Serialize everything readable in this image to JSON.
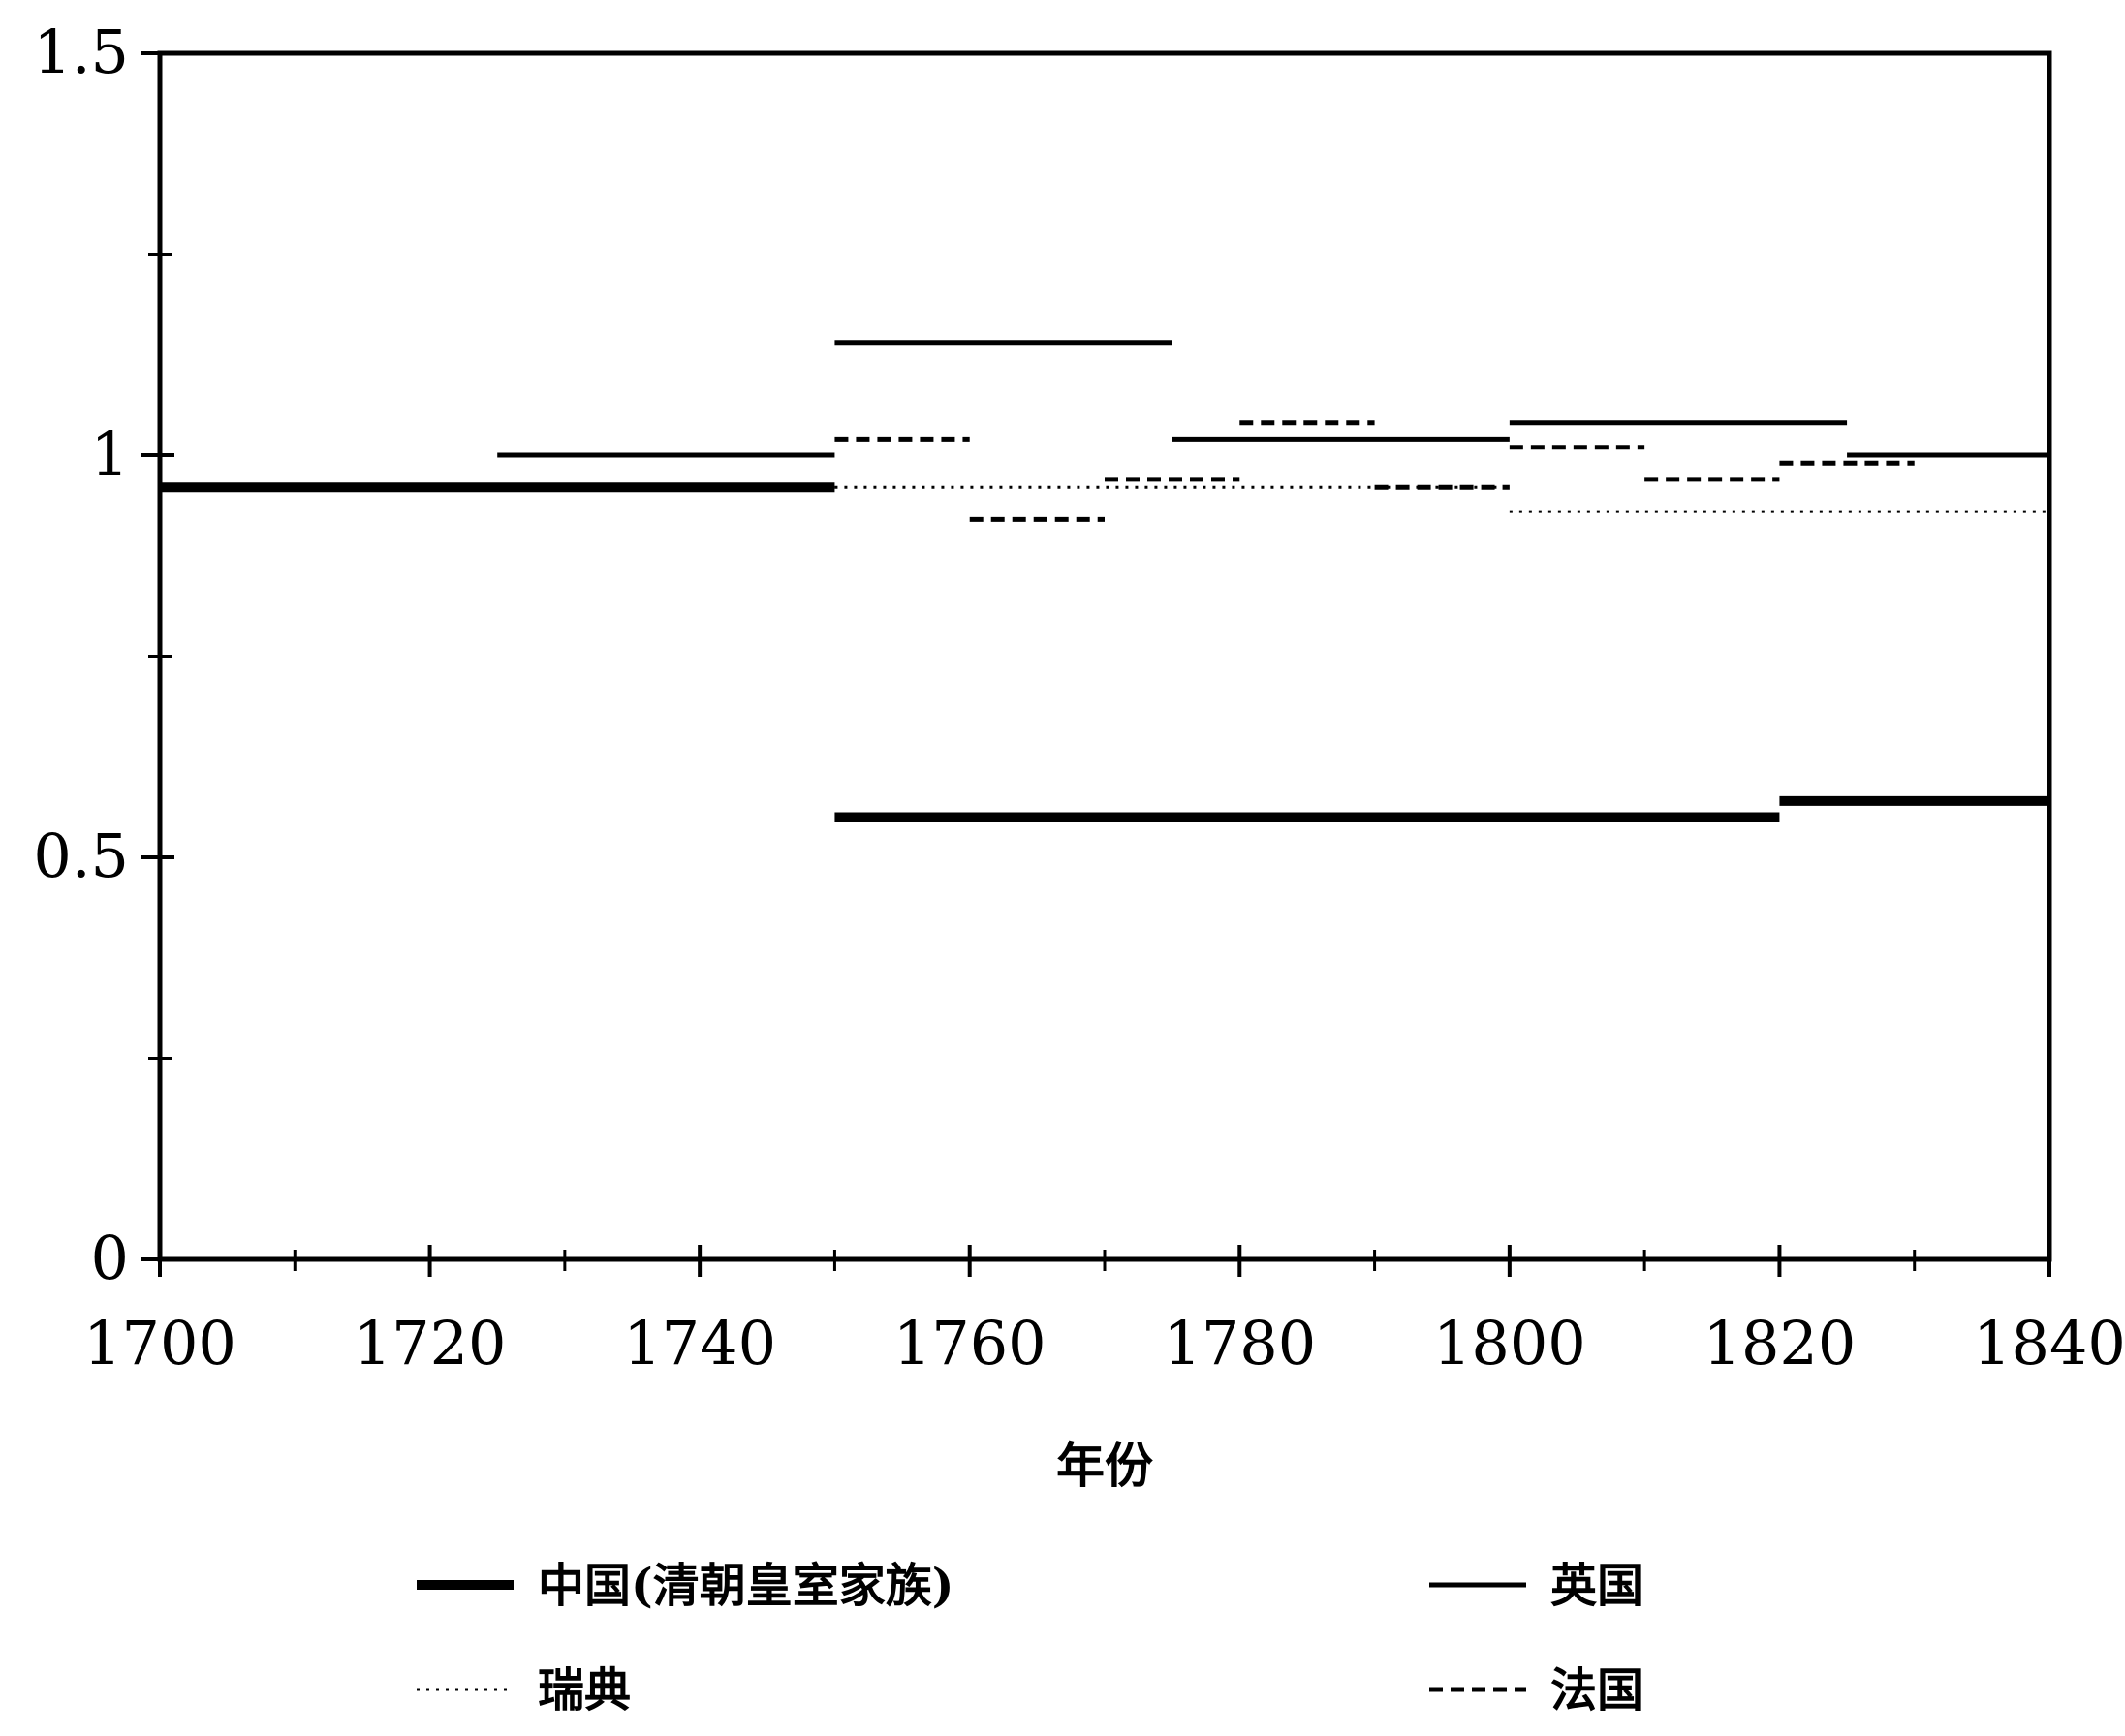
{
  "chart_data": {
    "type": "line",
    "step": true,
    "title": "",
    "xlabel": "年份",
    "ylabel": "",
    "xlim": [
      1700,
      1840
    ],
    "ylim": [
      0,
      1.5
    ],
    "x_ticks": [
      1700,
      1720,
      1740,
      1760,
      1780,
      1800,
      1820,
      1840
    ],
    "x_tick_labels": [
      "1700",
      "1720",
      "1740",
      "1760",
      "1780",
      "1800",
      "1820",
      "1840"
    ],
    "y_ticks": [
      0,
      0.5,
      1,
      1.5
    ],
    "y_tick_labels": [
      "0",
      "0.5",
      "1",
      "1.5"
    ],
    "grid": false,
    "legend_position": "bottom",
    "series": [
      {
        "name": "中国(清朝皇室家族)",
        "style": "thick-solid",
        "color": "#000000",
        "segments": [
          {
            "x": [
              1700,
              1750
            ],
            "y": 0.96
          },
          {
            "x": [
              1750,
              1820
            ],
            "y": 0.55
          },
          {
            "x": [
              1820,
              1840
            ],
            "y": 0.57
          }
        ]
      },
      {
        "name": "英国",
        "style": "solid",
        "color": "#000000",
        "segments": [
          {
            "x": [
              1725,
              1750
            ],
            "y": 1.0
          },
          {
            "x": [
              1750,
              1775
            ],
            "y": 1.14
          },
          {
            "x": [
              1775,
              1800
            ],
            "y": 1.02
          },
          {
            "x": [
              1800,
              1825
            ],
            "y": 1.04
          },
          {
            "x": [
              1825,
              1840
            ],
            "y": 1.0
          }
        ]
      },
      {
        "name": "瑞典",
        "style": "dotted",
        "color": "#000000",
        "segments": [
          {
            "x": [
              1750,
              1800
            ],
            "y": 0.96
          },
          {
            "x": [
              1800,
              1840
            ],
            "y": 0.93
          }
        ]
      },
      {
        "name": "法国",
        "style": "dashed",
        "color": "#000000",
        "segments": [
          {
            "x": [
              1750,
              1760
            ],
            "y": 1.02
          },
          {
            "x": [
              1760,
              1770
            ],
            "y": 0.92
          },
          {
            "x": [
              1770,
              1780
            ],
            "y": 0.97
          },
          {
            "x": [
              1780,
              1790
            ],
            "y": 1.04
          },
          {
            "x": [
              1790,
              1800
            ],
            "y": 0.96
          },
          {
            "x": [
              1800,
              1810
            ],
            "y": 1.01
          },
          {
            "x": [
              1810,
              1820
            ],
            "y": 0.97
          },
          {
            "x": [
              1820,
              1830
            ],
            "y": 0.99
          }
        ]
      }
    ]
  }
}
